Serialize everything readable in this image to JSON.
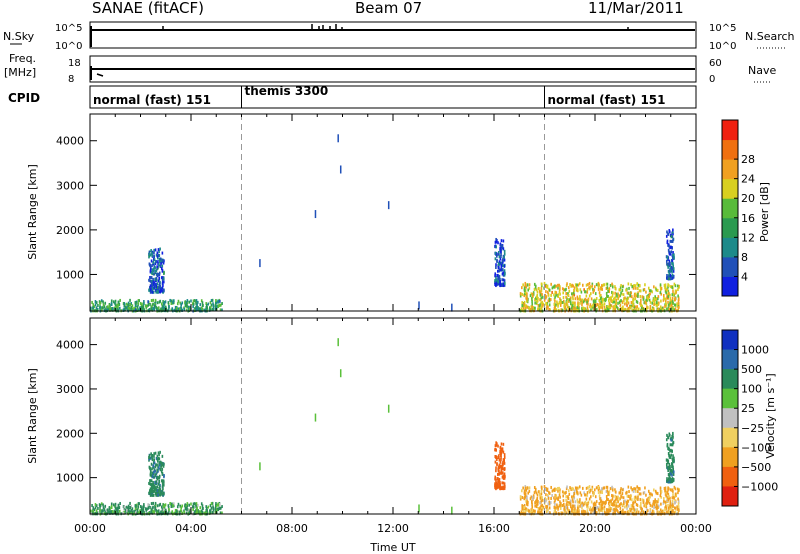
{
  "header": {
    "left_title": "SANAE (fitACF)",
    "center_title": "Beam 07",
    "right_title": "11/Mar/2011"
  },
  "panels": {
    "nsky": {
      "label": "N.Sky",
      "right_label": "N.Search",
      "left_ticks": [
        "10^5",
        "10^0"
      ],
      "right_ticks": [
        "10^5",
        "10^0"
      ]
    },
    "freq": {
      "label_line1": "Freq.",
      "label_line2": "[MHz]",
      "right_label": "Nave",
      "left_ticks": [
        "18",
        "8"
      ],
      "right_ticks": [
        "60",
        "0"
      ]
    },
    "cpid": {
      "label": "CPID",
      "modes": [
        {
          "name": "normal (fast) 151",
          "start_hr": 0
        },
        {
          "name": "themis 3300",
          "start_hr": 6
        },
        {
          "name": "normal (fast) 151",
          "start_hr": 18
        }
      ]
    }
  },
  "chart_data": [
    {
      "type": "heatmap",
      "name": "power",
      "xlabel": "",
      "ylabel": "Slant Range [km]",
      "xlim": [
        0,
        24
      ],
      "ylim": [
        180,
        4600
      ],
      "ytick_labels": [
        "1000",
        "2000",
        "3000",
        "4000"
      ],
      "colorbar": {
        "label": "Power [dB]",
        "range": [
          0,
          32
        ],
        "tick_labels": [
          "4",
          "8",
          "12",
          "16",
          "20",
          "24",
          "28"
        ],
        "colors": [
          "#1020e0",
          "#2050b8",
          "#1c8a8a",
          "#2a9a50",
          "#58bb3a",
          "#d8d020",
          "#f0a020",
          "#f07010",
          "#f02010"
        ]
      },
      "echo_regions_approx": [
        {
          "x": [
            0.0,
            5.2
          ],
          "range_km": [
            180,
            420
          ],
          "value_db": 12
        },
        {
          "x": [
            2.3,
            2.9
          ],
          "range_km": [
            600,
            1600
          ],
          "value_db": 6
        },
        {
          "x": [
            16.0,
            16.4
          ],
          "range_km": [
            750,
            1800
          ],
          "value_db": 5
        },
        {
          "x": [
            17.0,
            23.3
          ],
          "range_km": [
            180,
            800
          ],
          "value_db": 20
        },
        {
          "x": [
            22.8,
            23.1
          ],
          "range_km": [
            900,
            2000
          ],
          "value_db": 6
        }
      ],
      "boundary_lines_hr": [
        6,
        18
      ]
    },
    {
      "type": "heatmap",
      "name": "velocity",
      "xlabel": "Time UT",
      "ylabel": "Slant Range [km]",
      "xlim": [
        0,
        24
      ],
      "ylim": [
        180,
        4600
      ],
      "xtick_labels": [
        "00:00",
        "04:00",
        "08:00",
        "12:00",
        "16:00",
        "20:00",
        "00:00"
      ],
      "ytick_labels": [
        "1000",
        "2000",
        "3000",
        "4000"
      ],
      "colorbar": {
        "label": "Velocity  [m s⁻¹]",
        "tick_labels": [
          "1000",
          "500",
          "100",
          "25",
          "−25",
          "−100",
          "−500",
          "−1000"
        ],
        "colors": [
          "#1030c0",
          "#2a6aaa",
          "#2a8a5a",
          "#5ac03a",
          "#c0c0c0",
          "#f0d060",
          "#f0a020",
          "#f06010",
          "#e02010"
        ]
      },
      "echo_regions_approx": [
        {
          "x": [
            0.0,
            5.2
          ],
          "range_km": [
            180,
            420
          ],
          "value_ms": 150
        },
        {
          "x": [
            2.3,
            2.9
          ],
          "range_km": [
            600,
            1600
          ],
          "value_ms": 400
        },
        {
          "x": [
            16.0,
            16.4
          ],
          "range_km": [
            750,
            1800
          ],
          "value_ms": -700
        },
        {
          "x": [
            17.0,
            23.3
          ],
          "range_km": [
            180,
            800
          ],
          "value_ms": -150
        },
        {
          "x": [
            22.8,
            23.1
          ],
          "range_km": [
            900,
            2000
          ],
          "value_ms": 400
        }
      ],
      "boundary_lines_hr": [
        6,
        18
      ]
    }
  ]
}
